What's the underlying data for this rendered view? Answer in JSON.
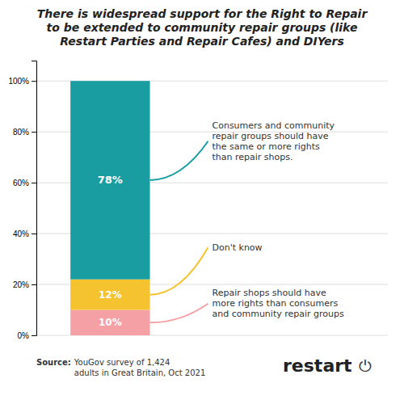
{
  "chart_data": {
    "type": "bar",
    "stacked": true,
    "title": "There is widespread support for the Right to Repair\nto be extended to community repair groups (like\nRestart Parties and Repair Cafes) and DIYers",
    "categories": [
      null
    ],
    "series": [
      {
        "name": "Repair shops should have\nmore rights than consumers\nand community repair groups",
        "color": "#F5A0A5",
        "values": [
          10
        ],
        "value_labels": [
          "10%"
        ]
      },
      {
        "name": "Don't know",
        "color": "#F5C230",
        "values": [
          12
        ],
        "value_labels": [
          "12%"
        ]
      },
      {
        "name": "Consumers and community\nrepair groups should have\nthe same or more rights\nthan repair shops.",
        "color": "#1A9DA0",
        "values": [
          78
        ],
        "value_labels": [
          "78%"
        ]
      }
    ],
    "data_labels": true,
    "ylim": [
      0,
      108
    ],
    "yticks": [
      {
        "value": 0,
        "label": "0%"
      },
      {
        "value": 20,
        "label": "20%"
      },
      {
        "value": 40,
        "label": "40%"
      },
      {
        "value": 60,
        "label": "60%"
      },
      {
        "value": 80,
        "label": "80%"
      },
      {
        "value": 100,
        "label": "100%"
      }
    ],
    "grid": true,
    "tick_labels": "y",
    "annotations": [
      "Source:",
      "YouGov survey of 1,424\nadults in Great Britain, Oct 2021",
      "restart",
      "⏻"
    ]
  }
}
